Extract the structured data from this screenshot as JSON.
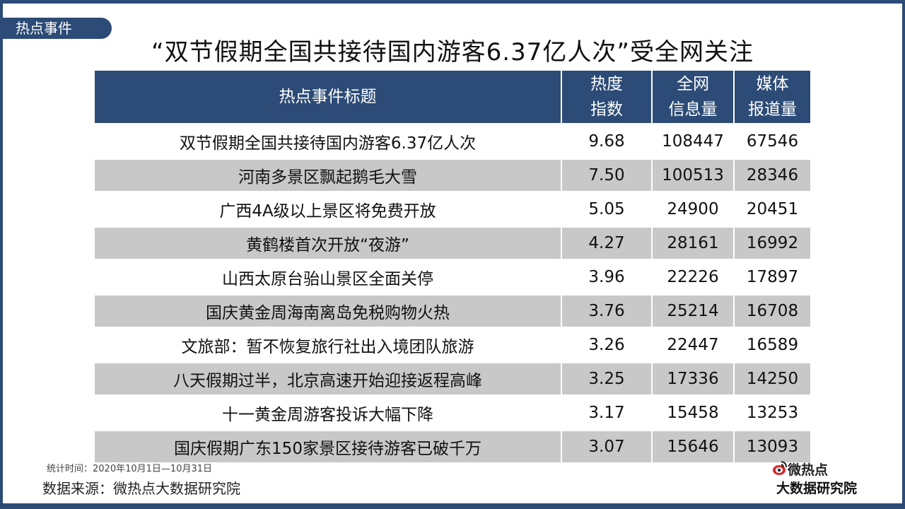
{
  "tag": "热点事件",
  "title": "“双节假期全国共接待国内游客6.37亿人次”受全网关注",
  "table": {
    "headers": [
      "热点事件标题",
      "热度\n指数",
      "全网\n信息量",
      "媒体\n报道量"
    ],
    "rows": [
      [
        "双节假期全国共接待国内游客6.37亿人次",
        "9.68",
        "108447",
        "67546"
      ],
      [
        "河南多景区飘起鹅毛大雪",
        "7.50",
        "100513",
        "28346"
      ],
      [
        "广西4A级以上景区将免费开放",
        "5.05",
        "24900",
        "20451"
      ],
      [
        "黄鹤楼首次开放“夜游”",
        "4.27",
        "28161",
        "16992"
      ],
      [
        "山西太原台骀山景区全面关停",
        "3.96",
        "22226",
        "17897"
      ],
      [
        "国庆黄金周海南离岛免税购物火热",
        "3.76",
        "25214",
        "16708"
      ],
      [
        "文旅部：暂不恢复旅行社出入境团队旅游",
        "3.26",
        "22447",
        "16589"
      ],
      [
        "八天假期过半，北京高速开始迎接返程高峰",
        "3.25",
        "17336",
        "14250"
      ],
      [
        "十一黄金周游客投诉大幅下降",
        "3.17",
        "15458",
        "13253"
      ],
      [
        "国庆假期广东150家景区接待游客已破千万",
        "3.07",
        "15646",
        "13093"
      ]
    ]
  },
  "stat_period": "统计时间：2020年10月1日—10月31日",
  "source": "数据来源：微热点大数据研究院",
  "logo": {
    "line1": "微热点",
    "line2": "大数据研究院",
    "icon": "weibo-eye-icon"
  },
  "colors": {
    "primary": "#2c4b76",
    "row_alt": "#c8c8c8",
    "logo_red": "#d62b2b"
  }
}
